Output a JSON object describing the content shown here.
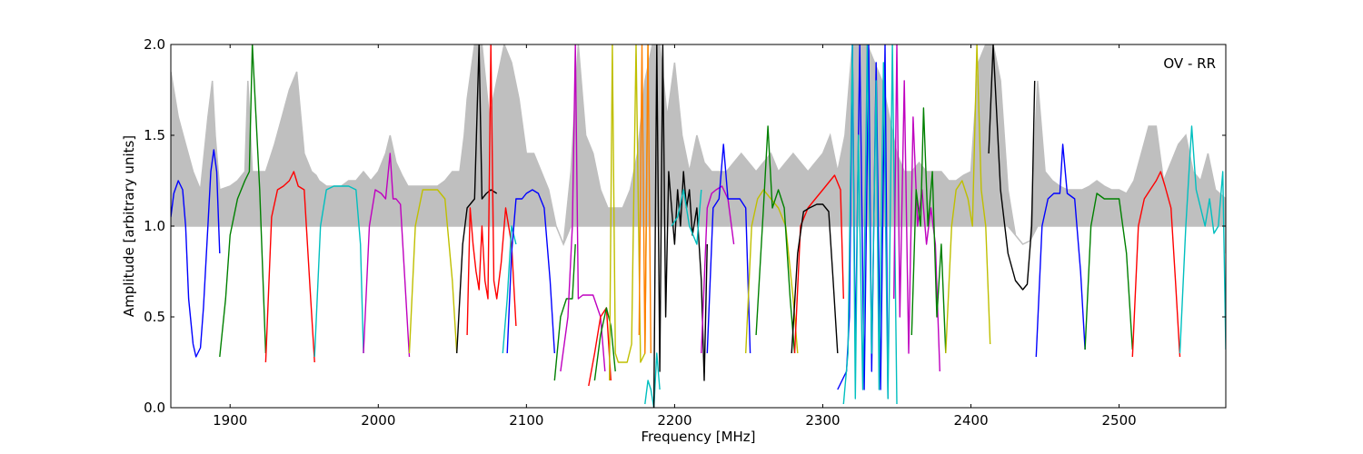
{
  "chart_data": {
    "type": "line",
    "annotation": "OV - RR",
    "xlabel": "Frequency [MHz]",
    "ylabel": "Amplitude [arbitrary units]",
    "xlim": [
      1860,
      2572
    ],
    "ylim": [
      0.0,
      2.0
    ],
    "xticks": [
      1900,
      2000,
      2100,
      2200,
      2300,
      2400,
      2500
    ],
    "yticks": [
      0.0,
      0.5,
      1.0,
      1.5,
      2.0
    ],
    "xtick_labels": [
      "1900",
      "2000",
      "2100",
      "2200",
      "2300",
      "2400",
      "2500"
    ],
    "ytick_labels": [
      "0.0",
      "0.5",
      "1.0",
      "1.5",
      "2.0"
    ],
    "grid": false,
    "envelope_color": "#bfbfbf",
    "envelope": {
      "x": [
        1860,
        1865,
        1870,
        1875,
        1880,
        1885,
        1888,
        1890,
        1893,
        1900,
        1905,
        1910,
        1912,
        1915,
        1920,
        1924,
        1930,
        1935,
        1940,
        1945,
        1950,
        1955,
        1958,
        1960,
        1965,
        1970,
        1975,
        1980,
        1985,
        1990,
        1995,
        2000,
        2005,
        2008,
        2012,
        2016,
        2020,
        2025,
        2030,
        2035,
        2040,
        2045,
        2050,
        2055,
        2058,
        2060,
        2065,
        2070,
        2075,
        2080,
        2085,
        2090,
        2095,
        2100,
        2105,
        2110,
        2115,
        2120,
        2125,
        2130,
        2135,
        2140,
        2145,
        2150,
        2155,
        2160,
        2165,
        2170,
        2175,
        2180,
        2185,
        2190,
        2195,
        2200,
        2205,
        2210,
        2215,
        2220,
        2225,
        2230,
        2235,
        2240,
        2245,
        2250,
        2255,
        2260,
        2265,
        2270,
        2275,
        2280,
        2285,
        2290,
        2295,
        2300,
        2305,
        2310,
        2315,
        2320,
        2325,
        2330,
        2335,
        2340,
        2345,
        2350,
        2355,
        2360,
        2365,
        2370,
        2375,
        2380,
        2385,
        2390,
        2395,
        2400,
        2405,
        2410,
        2415,
        2420,
        2425,
        2430,
        2435,
        2440,
        2445,
        2450,
        2455,
        2460,
        2465,
        2470,
        2475,
        2480,
        2485,
        2490,
        2495,
        2500,
        2505,
        2510,
        2515,
        2520,
        2525,
        2530,
        2535,
        2540,
        2545,
        2550,
        2555,
        2560,
        2565,
        2572
      ],
      "y": [
        1.85,
        1.6,
        1.45,
        1.3,
        1.2,
        1.6,
        1.8,
        1.5,
        1.2,
        1.22,
        1.25,
        1.3,
        1.8,
        1.3,
        1.3,
        1.3,
        1.45,
        1.6,
        1.75,
        1.85,
        1.4,
        1.3,
        1.28,
        1.25,
        1.22,
        1.22,
        1.22,
        1.25,
        1.25,
        1.3,
        1.25,
        1.3,
        1.4,
        1.5,
        1.35,
        1.28,
        1.22,
        1.22,
        1.22,
        1.22,
        1.22,
        1.25,
        1.3,
        1.3,
        1.5,
        1.7,
        2.0,
        2.0,
        1.6,
        1.8,
        2.0,
        1.9,
        1.7,
        1.4,
        1.4,
        1.3,
        1.2,
        1.0,
        0.9,
        1.3,
        2.0,
        1.5,
        1.4,
        1.2,
        1.1,
        1.1,
        1.1,
        1.2,
        1.4,
        1.8,
        2.0,
        2.0,
        1.6,
        1.9,
        1.5,
        1.3,
        1.5,
        1.35,
        1.3,
        1.3,
        1.3,
        1.35,
        1.4,
        1.35,
        1.3,
        1.35,
        1.4,
        1.3,
        1.35,
        1.4,
        1.35,
        1.3,
        1.35,
        1.4,
        1.5,
        1.3,
        1.5,
        2.0,
        2.0,
        2.0,
        1.9,
        1.8,
        1.6,
        1.4,
        1.3,
        1.3,
        1.35,
        1.3,
        1.3,
        1.3,
        1.25,
        1.25,
        1.28,
        1.3,
        1.9,
        2.0,
        2.0,
        1.8,
        1.2,
        0.95,
        0.9,
        0.92,
        1.8,
        1.3,
        1.25,
        1.22,
        1.2,
        1.2,
        1.2,
        1.22,
        1.25,
        1.22,
        1.2,
        1.2,
        1.18,
        1.25,
        1.4,
        1.55,
        1.55,
        1.25,
        1.35,
        1.45,
        1.5,
        1.3,
        1.25,
        1.4,
        1.2,
        1.15
      ]
    },
    "series": [
      {
        "color": "#0000ff",
        "x": [
          1860,
          1862,
          1865,
          1868,
          1870,
          1872,
          1875,
          1877,
          1880,
          1882,
          1885,
          1887,
          1889,
          1891,
          1893
        ],
        "y": [
          1.05,
          1.18,
          1.25,
          1.2,
          1.0,
          0.6,
          0.35,
          0.28,
          0.33,
          0.55,
          1.0,
          1.3,
          1.42,
          1.3,
          0.85
        ]
      },
      {
        "color": "#008000",
        "x": [
          1893,
          1897,
          1900,
          1905,
          1910,
          1913,
          1915,
          1920,
          1924
        ],
        "y": [
          0.28,
          0.6,
          0.95,
          1.15,
          1.25,
          1.3,
          2.0,
          1.2,
          0.3
        ]
      },
      {
        "color": "#ff0000",
        "x": [
          1924,
          1928,
          1932,
          1936,
          1940,
          1943,
          1946,
          1950,
          1954,
          1957
        ],
        "y": [
          0.25,
          1.05,
          1.2,
          1.22,
          1.25,
          1.3,
          1.22,
          1.2,
          0.65,
          0.25
        ]
      },
      {
        "color": "#00bfbf",
        "x": [
          1957,
          1961,
          1965,
          1970,
          1975,
          1980,
          1985,
          1988,
          1990
        ],
        "y": [
          0.28,
          1.0,
          1.2,
          1.22,
          1.22,
          1.22,
          1.2,
          0.9,
          0.3
        ]
      },
      {
        "color": "#bf00bf",
        "x": [
          1990,
          1994,
          1998,
          2002,
          2005,
          2008,
          2010,
          2012,
          2015,
          2018,
          2021
        ],
        "y": [
          0.3,
          1.0,
          1.2,
          1.18,
          1.15,
          1.4,
          1.15,
          1.15,
          1.12,
          0.7,
          0.28
        ]
      },
      {
        "color": "#bfbf00",
        "x": [
          2021,
          2025,
          2030,
          2035,
          2040,
          2045,
          2050,
          2053
        ],
        "y": [
          0.3,
          1.0,
          1.2,
          1.2,
          1.2,
          1.15,
          0.7,
          0.3
        ]
      },
      {
        "color": "#000000",
        "x": [
          2053,
          2057,
          2060,
          2062,
          2065,
          2068,
          2070,
          2073,
          2076,
          2080
        ],
        "y": [
          0.3,
          0.9,
          1.1,
          1.12,
          1.15,
          2.0,
          1.15,
          1.18,
          1.2,
          1.18
        ]
      },
      {
        "color": "#ff0000",
        "x": [
          2060,
          2062,
          2064,
          2066,
          2068,
          2070,
          2072,
          2074,
          2076,
          2078,
          2080,
          2083,
          2086,
          2090,
          2093
        ],
        "y": [
          0.4,
          1.1,
          0.9,
          0.75,
          0.65,
          1.0,
          0.7,
          0.6,
          2.0,
          0.7,
          0.6,
          0.8,
          1.1,
          0.9,
          0.45
        ]
      },
      {
        "color": "#00bfbf",
        "x": [
          2084,
          2087,
          2090,
          2093
        ],
        "y": [
          0.3,
          0.6,
          1.0,
          0.9
        ]
      },
      {
        "color": "#0000ff",
        "x": [
          2087,
          2090,
          2093,
          2097,
          2100,
          2104,
          2108,
          2112,
          2116,
          2119
        ],
        "y": [
          0.3,
          0.85,
          1.15,
          1.15,
          1.18,
          1.2,
          1.18,
          1.1,
          0.7,
          0.3
        ]
      },
      {
        "color": "#008000",
        "x": [
          2119,
          2123,
          2127,
          2131,
          2133
        ],
        "y": [
          0.15,
          0.5,
          0.6,
          0.6,
          0.9
        ]
      },
      {
        "color": "#bf00bf",
        "x": [
          2123,
          2128,
          2131,
          2133,
          2135,
          2138,
          2140,
          2145,
          2150,
          2153
        ],
        "y": [
          0.2,
          0.5,
          1.0,
          2.0,
          0.6,
          0.62,
          0.62,
          0.62,
          0.5,
          0.2
        ]
      },
      {
        "color": "#ff0000",
        "x": [
          2142,
          2146,
          2150,
          2154,
          2157
        ],
        "y": [
          0.12,
          0.3,
          0.5,
          0.55,
          0.15
        ]
      },
      {
        "color": "#008000",
        "x": [
          2146,
          2150,
          2154,
          2157,
          2160
        ],
        "y": [
          0.15,
          0.4,
          0.55,
          0.45,
          0.2
        ]
      },
      {
        "color": "#bfbf00",
        "x": [
          2156,
          2158,
          2160,
          2162,
          2165,
          2168,
          2171,
          2174,
          2177,
          2180,
          2182
        ],
        "y": [
          0.15,
          2.0,
          0.3,
          0.25,
          0.25,
          0.25,
          0.35,
          2.0,
          0.25,
          0.3,
          2.0
        ]
      },
      {
        "color": "#ff8000",
        "x": [
          2176,
          2178,
          2180,
          2182,
          2184
        ],
        "y": [
          0.4,
          2.0,
          0.3,
          2.0,
          0.3
        ]
      },
      {
        "color": "#00bfbf",
        "x": [
          2180,
          2182,
          2184,
          2186,
          2188,
          2190
        ],
        "y": [
          0.02,
          0.15,
          0.1,
          0.0,
          0.3,
          0.1
        ]
      },
      {
        "color": "#000000",
        "x": [
          2186,
          2188,
          2190,
          2192,
          2194,
          2196,
          2198,
          2200,
          2202,
          2204,
          2206,
          2208,
          2210,
          2212,
          2215,
          2218,
          2220,
          2222
        ],
        "y": [
          0.0,
          2.0,
          0.2,
          2.0,
          0.5,
          1.3,
          1.1,
          0.9,
          1.2,
          1.0,
          1.3,
          1.1,
          1.2,
          0.95,
          1.1,
          0.7,
          0.15,
          0.9
        ]
      },
      {
        "color": "#00bfbf",
        "x": [
          2198,
          2202,
          2206,
          2210,
          2215,
          2218
        ],
        "y": [
          1.0,
          1.05,
          1.2,
          1.0,
          0.9,
          1.2
        ]
      },
      {
        "color": "#bf00bf",
        "x": [
          2218,
          2222,
          2225,
          2228,
          2232,
          2236,
          2240
        ],
        "y": [
          0.3,
          1.1,
          1.18,
          1.2,
          1.22,
          1.15,
          0.9
        ]
      },
      {
        "color": "#0000ff",
        "x": [
          2222,
          2226,
          2230,
          2233,
          2236,
          2240,
          2244,
          2248,
          2251
        ],
        "y": [
          0.3,
          1.1,
          1.15,
          1.45,
          1.15,
          1.15,
          1.15,
          1.1,
          0.3
        ]
      },
      {
        "color": "#bfbf00",
        "x": [
          2248,
          2252,
          2256,
          2260,
          2265,
          2270,
          2275,
          2280,
          2283
        ],
        "y": [
          0.3,
          1.0,
          1.15,
          1.2,
          1.15,
          1.1,
          1.0,
          0.6,
          0.3
        ]
      },
      {
        "color": "#008000",
        "x": [
          2255,
          2260,
          2263,
          2266,
          2270,
          2274,
          2278,
          2281
        ],
        "y": [
          0.4,
          1.1,
          1.55,
          1.1,
          1.2,
          1.1,
          0.6,
          0.3
        ]
      },
      {
        "color": "#ff0000",
        "x": [
          2281,
          2285,
          2290,
          2295,
          2300,
          2305,
          2308,
          2312,
          2314
        ],
        "y": [
          0.3,
          1.0,
          1.1,
          1.15,
          1.2,
          1.25,
          1.28,
          1.2,
          0.6
        ]
      },
      {
        "color": "#000000",
        "x": [
          2279,
          2283,
          2287,
          2291,
          2296,
          2300,
          2304,
          2307,
          2310
        ],
        "y": [
          0.3,
          0.85,
          1.08,
          1.1,
          1.12,
          1.12,
          1.08,
          0.7,
          0.3
        ]
      },
      {
        "color": "#0000ff",
        "x": [
          2310,
          2313,
          2316,
          2318,
          2320,
          2322,
          2325,
          2328,
          2331,
          2333,
          2336,
          2339,
          2342,
          2344
        ],
        "y": [
          0.1,
          0.15,
          0.2,
          0.5,
          2.0,
          0.3,
          2.0,
          0.1,
          2.0,
          0.2,
          1.9,
          0.1,
          2.0,
          0.05
        ]
      },
      {
        "color": "#00bfbf",
        "x": [
          2314,
          2317,
          2320,
          2322,
          2324,
          2327,
          2330,
          2333,
          2336,
          2338,
          2341,
          2344,
          2347,
          2350
        ],
        "y": [
          0.02,
          0.3,
          2.0,
          0.05,
          1.5,
          0.1,
          2.0,
          0.3,
          1.8,
          0.1,
          1.9,
          0.05,
          2.0,
          0.02
        ]
      },
      {
        "color": "#bf00bf",
        "x": [
          2348,
          2350,
          2352,
          2355,
          2358,
          2361,
          2364,
          2367,
          2370,
          2373,
          2376,
          2379
        ],
        "y": [
          0.6,
          2.0,
          0.5,
          1.8,
          0.3,
          1.6,
          1.0,
          1.2,
          0.9,
          1.1,
          0.9,
          0.2
        ]
      },
      {
        "color": "#008000",
        "x": [
          2360,
          2363,
          2366,
          2368,
          2371,
          2374,
          2377,
          2380,
          2383
        ],
        "y": [
          0.4,
          1.2,
          1.0,
          1.65,
          1.0,
          1.3,
          0.5,
          0.9,
          0.3
        ]
      },
      {
        "color": "#bfbf00",
        "x": [
          2383,
          2387,
          2390,
          2394,
          2398,
          2401,
          2404,
          2407,
          2410,
          2413
        ],
        "y": [
          0.3,
          1.0,
          1.2,
          1.25,
          1.15,
          1.0,
          2.0,
          1.2,
          1.0,
          0.35
        ]
      },
      {
        "color": "#000000",
        "x": [
          2412,
          2415,
          2420,
          2425,
          2430,
          2435,
          2438,
          2441,
          2443
        ],
        "y": [
          1.4,
          2.0,
          1.2,
          0.85,
          0.7,
          0.65,
          0.68,
          1.0,
          1.8
        ]
      },
      {
        "color": "#0000ff",
        "x": [
          2444,
          2448,
          2452,
          2456,
          2460,
          2462,
          2465,
          2470,
          2474,
          2477
        ],
        "y": [
          0.28,
          1.0,
          1.15,
          1.18,
          1.18,
          1.45,
          1.18,
          1.15,
          0.75,
          0.32
        ]
      },
      {
        "color": "#008000",
        "x": [
          2477,
          2481,
          2485,
          2490,
          2495,
          2500,
          2505,
          2509
        ],
        "y": [
          0.32,
          1.0,
          1.18,
          1.15,
          1.15,
          1.15,
          0.85,
          0.32
        ]
      },
      {
        "color": "#ff0000",
        "x": [
          2509,
          2513,
          2517,
          2521,
          2525,
          2528,
          2531,
          2535,
          2538,
          2541
        ],
        "y": [
          0.28,
          1.0,
          1.15,
          1.2,
          1.25,
          1.3,
          1.22,
          1.1,
          0.7,
          0.28
        ]
      },
      {
        "color": "#00bfbf",
        "x": [
          2541,
          2545,
          2549,
          2552,
          2555,
          2558,
          2561,
          2564,
          2567,
          2570,
          2572
        ],
        "y": [
          0.3,
          1.0,
          1.55,
          1.2,
          1.1,
          1.0,
          1.15,
          0.96,
          1.0,
          1.3,
          0.32
        ]
      }
    ]
  }
}
